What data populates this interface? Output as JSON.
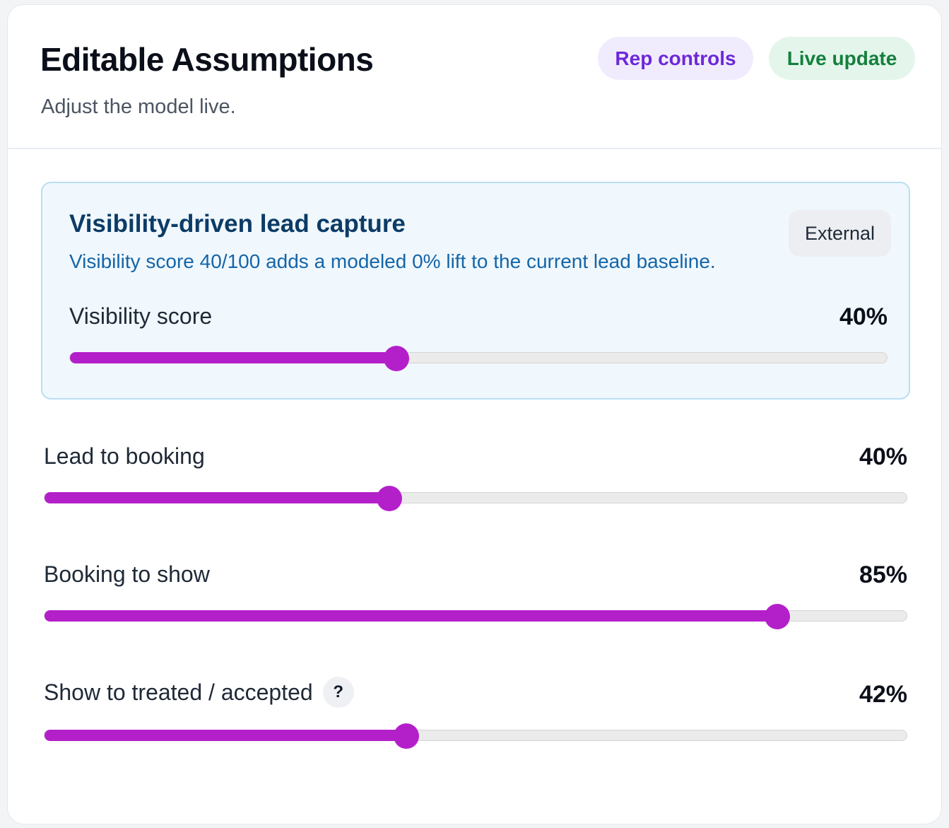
{
  "header": {
    "title": "Editable Assumptions",
    "subtitle": "Adjust the model live.",
    "rep_controls": "Rep controls",
    "live_update": "Live update"
  },
  "visibility": {
    "title": "Visibility-driven lead capture",
    "description": "Visibility score 40/100 adds a modeled 0% lift to the current lead baseline.",
    "badge": "External",
    "slider": {
      "label": "Visibility score",
      "value_text": "40%",
      "value": 40
    }
  },
  "sliders": [
    {
      "label": "Lead to booking",
      "value_text": "40%",
      "value": 40
    },
    {
      "label": "Booking to show",
      "value_text": "85%",
      "value": 85
    },
    {
      "label": "Show to treated / accepted",
      "value_text": "42%",
      "value": 42,
      "help": "?"
    }
  ],
  "colors": {
    "accent": "#b320c9",
    "track": "#ebebeb"
  }
}
